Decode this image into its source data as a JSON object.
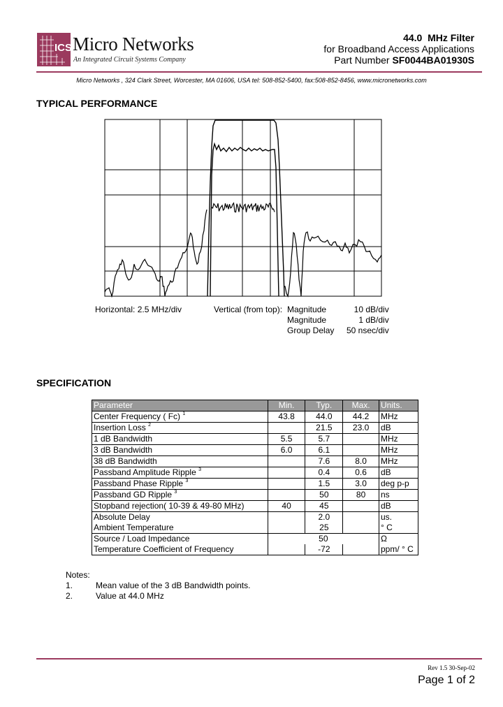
{
  "header": {
    "brand": "Micro Networks",
    "tagline": "An Integrated Circuit Systems Company",
    "logo_text": "ICS",
    "title_freq": "44.0",
    "title_rest": "MHz Filter",
    "subtitle": "for Broadband Access Applications",
    "part_label": "Part Number",
    "part_number": "SF0044BA01930S",
    "address": "Micro Networks , 324 Clark Street, Worcester, MA 01606, USA   tel: 508-852-5400,  fax:508-852-8456,  www.micronetworks.com"
  },
  "colors": {
    "accent": "#9b3a5e",
    "table_header": "#999999"
  },
  "performance": {
    "heading": "TYPICAL PERFORMANCE",
    "horizontal": "Horizontal:  2.5 MHz/div",
    "vertical": "Vertical (from top):",
    "traces": [
      {
        "name": "Magnitude",
        "scale": "10 dB/div"
      },
      {
        "name": "Magnitude",
        "scale": "1 dB/div"
      },
      {
        "name": "Group Delay",
        "scale": "50 nsec/div"
      }
    ]
  },
  "spec": {
    "heading": "SPECIFICATION",
    "columns": [
      "Parameter",
      "Min.",
      "Typ.",
      "Max.",
      "Units."
    ],
    "rows": [
      {
        "p": "Center Frequency ( Fc)",
        "sup": "1",
        "min": "43.8",
        "typ": "44.0",
        "max": "44.2",
        "u": "MHz"
      },
      {
        "p": "Insertion Loss",
        "sup": "2",
        "min": "",
        "typ": "21.5",
        "max": "23.0",
        "u": "dB"
      },
      {
        "p": "1 dB Bandwidth",
        "sup": "",
        "min": "5.5",
        "typ": "5.7",
        "max": "",
        "u": "MHz"
      },
      {
        "p": "3 dB Bandwidth",
        "sup": "",
        "min": "6.0",
        "typ": "6.1",
        "max": "",
        "u": "MHz"
      },
      {
        "p": "38 dB Bandwidth",
        "sup": "",
        "min": "",
        "typ": "7.6",
        "max": "8.0",
        "u": "MHz"
      },
      {
        "p": "Passband Amplitude Ripple",
        "sup": "3",
        "min": "",
        "typ": "0.4",
        "max": "0.6",
        "u": "dB"
      },
      {
        "p": "Passband Phase Ripple",
        "sup": "3",
        "min": "",
        "typ": "1.5",
        "max": "3.0",
        "u": "deg p-p"
      },
      {
        "p": "Passband GD Ripple",
        "sup": "3",
        "min": "",
        "typ": "50",
        "max": "80",
        "u": "ns"
      },
      {
        "p": "Stopband rejection( 10-39 & 49-80 MHz)",
        "sup": "",
        "min": "40",
        "typ": "45",
        "max": "",
        "u": "dB"
      },
      {
        "p": "Absolute Delay",
        "sup": "",
        "min": "",
        "typ": "2.0",
        "max": "",
        "u": "us."
      },
      {
        "p": "Ambient Temperature",
        "sup": "",
        "min": "",
        "typ": "25",
        "max": "",
        "u": "° C"
      }
    ],
    "impedance": {
      "p": "Source / Load Impedance",
      "v": "50",
      "u": "Ω"
    },
    "tempco": {
      "p": "Temperature Coefficient of Frequency",
      "typ": "-72",
      "u": "ppm/ ° C"
    }
  },
  "notes": {
    "title": "Notes:",
    "items": [
      {
        "n": "1.",
        "t": "Mean value of the 3 dB Bandwidth points."
      },
      {
        "n": "2.",
        "t": "Value at 44.0 MHz"
      }
    ]
  },
  "footer": {
    "rev": "Rev 1.5 30-Sep-02",
    "page_label": "Page",
    "page": "1",
    "of": "of",
    "total": "2"
  }
}
